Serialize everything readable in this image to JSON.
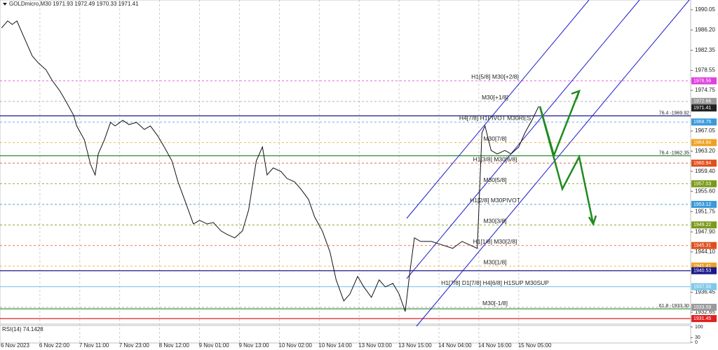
{
  "chart_data": {
    "type": "line",
    "title": "GOLDmicro,M30  1971.93 1972.49 1970.33 1971.41",
    "x": [
      1,
      5,
      8,
      11,
      14,
      17,
      21,
      25,
      30,
      34,
      39,
      43,
      48,
      50,
      55,
      59,
      62,
      64,
      68,
      72,
      75,
      80,
      84,
      89,
      94,
      98,
      103,
      107,
      112,
      116,
      121,
      126,
      130,
      135,
      139,
      144,
      148,
      153,
      158,
      162,
      167,
      171,
      174,
      178,
      183,
      187,
      192,
      196,
      201,
      205,
      210,
      215,
      219,
      224,
      228,
      233,
      237,
      242,
      247,
      251,
      256,
      260,
      264,
      267,
      270,
      274,
      281,
      288,
      295,
      301,
      306,
      311,
      314,
      316,
      320,
      324,
      329,
      333,
      338,
      342,
      347,
      351
    ],
    "series": [
      {
        "color": "#111111",
        "values": [
          1986.6,
          1987.93,
          1987.26,
          1987.93,
          1985.93,
          1983.94,
          1981.28,
          1979.96,
          1978.63,
          1976.64,
          1974.65,
          1972.65,
          1969.99,
          1968.0,
          1965.35,
          1960.7,
          1958.71,
          1962.69,
          1965.35,
          1968.67,
          1968.0,
          1969.07,
          1968.27,
          1968.67,
          1967.34,
          1968.0,
          1966.01,
          1964.02,
          1961.36,
          1957.38,
          1953.4,
          1949.41,
          1950.08,
          1949.41,
          1949.68,
          1948.08,
          1947.42,
          1946.76,
          1948.08,
          1952.07,
          1961.36,
          1964.02,
          1958.71,
          1960.04,
          1959.37,
          1958.04,
          1957.38,
          1956.05,
          1954.06,
          1950.74,
          1948.08,
          1944.1,
          1938.79,
          1934.8,
          1936.13,
          1939.45,
          1937.46,
          1935.47,
          1938.79,
          1937.46,
          1938.12,
          1936.13,
          1932.81,
          1940.12,
          1946.76,
          1946.09,
          1946.09,
          1945.43,
          1944.77,
          1946.09,
          1945.43,
          1944.77,
          1966.68,
          1968.0,
          1963.36,
          1962.69,
          1963.36,
          1962.69,
          1964.02,
          1966.68,
          1969.32,
          1971.72
        ]
      }
    ],
    "xlim": [
      0,
      450
    ],
    "xticks": [
      {
        "value": 0,
        "label": "6 Nov 2023"
      },
      {
        "value": 26,
        "label": "6 Nov 22:00"
      },
      {
        "value": 52,
        "label": "7 Nov 11:00"
      },
      {
        "value": 78,
        "label": "7 Nov 23:00"
      },
      {
        "value": 104,
        "label": "8 Nov 12:00"
      },
      {
        "value": 130,
        "label": "9 Nov 01:00"
      },
      {
        "value": 156,
        "label": "9 Nov 13:00"
      },
      {
        "value": 182,
        "label": "10 Nov 02:00"
      },
      {
        "value": 208,
        "label": "10 Nov 14:00"
      },
      {
        "value": 234,
        "label": "13 Nov 03:00"
      },
      {
        "value": 260,
        "label": "13 Nov 15:00"
      },
      {
        "value": 286,
        "label": "14 Nov 04:00"
      },
      {
        "value": 312,
        "label": "14 Nov 16:00"
      },
      {
        "value": 338,
        "label": "15 Nov 05:00"
      }
    ],
    "ylim": [
      1930.4,
      1991.9
    ],
    "yticks": [
      1990.05,
      {
        "value": 1986.2,
        "label": "1986.20"
      },
      1982.35,
      1978.55,
      1974.75,
      1967.05,
      {
        "value": 1963.2,
        "label": "1963.20"
      },
      {
        "value": 1959.4,
        "label": "1959.40"
      },
      {
        "value": 1955.6,
        "label": "1955.60"
      },
      1951.75,
      {
        "value": 1947.9,
        "label": "1947.90"
      },
      {
        "value": 1944.1,
        "label": "1944.10"
      },
      1936.45,
      1932.65
    ],
    "grid": true,
    "levels": [
      {
        "value": 1976.56,
        "color": "#e040e0",
        "text": "H1[5/8] M30[+2/8]",
        "style": "dotted"
      },
      {
        "value": 1972.66,
        "color": "#9a9a9a",
        "text": "M30[+1/8]",
        "style": "dotted"
      },
      {
        "value": 1968.75,
        "color": "#3a9ad9",
        "text": "H4[7/8] H1PIVOT M30RES",
        "style": "dotted"
      },
      {
        "value": 1964.84,
        "color": "#f0a020",
        "text": "M30[7/8]",
        "style": "dotted"
      },
      {
        "value": 1960.94,
        "color": "#e0501e",
        "text": "H1[3/8] M30[6/8]",
        "style": "dotted"
      },
      {
        "value": 1957.03,
        "color": "#7a9a1a",
        "text": "M30[5/8]",
        "style": "dotted"
      },
      {
        "value": 1953.12,
        "color": "#3a9ad9",
        "text": "H1[2/8] M30PIVOT",
        "style": "dotted"
      },
      {
        "value": 1949.22,
        "color": "#7a9a1a",
        "text": "M30[3/8]",
        "style": "dotted"
      },
      {
        "value": 1945.31,
        "color": "#e0501e",
        "text": "H1[1/8] M30[2/8]",
        "style": "dotted"
      },
      {
        "value": 1941.41,
        "color": "#f0a020",
        "text": "M30[1/8]",
        "style": "dotted"
      },
      {
        "value": 1940.53,
        "color": "#1a1a8a",
        "style": "solid"
      },
      {
        "value": 1937.5,
        "value_label": "1937.50",
        "color": "#7ec8ea",
        "text": "H1[7/8] D1[7/8] H4[6/8] H1SUP M30SUP",
        "style": "solid"
      },
      {
        "value": 1933.59,
        "color": "#9a9a9a",
        "text": "M30[-1/8]",
        "style": "dotted"
      },
      {
        "value": 1931.45,
        "color": "#e02020",
        "style": "solid"
      },
      {
        "value": 1971.41,
        "color": "#222222",
        "style": "none"
      }
    ],
    "fib_lines": [
      {
        "value": 1969.92,
        "label": "76.4 -1969.92",
        "color": "#1a1a8a"
      },
      {
        "value": 1962.35,
        "label": "76.4 -1962.35",
        "color": "#2a8a2a"
      },
      {
        "value": 1933.3,
        "label": "61.8 -1933.30",
        "color": "#2a8a2a"
      }
    ],
    "indicator": {
      "label": "RSI(14) 74.1428",
      "ylim": [
        0,
        100
      ],
      "yticks": [
        100,
        30,
        0
      ]
    }
  }
}
